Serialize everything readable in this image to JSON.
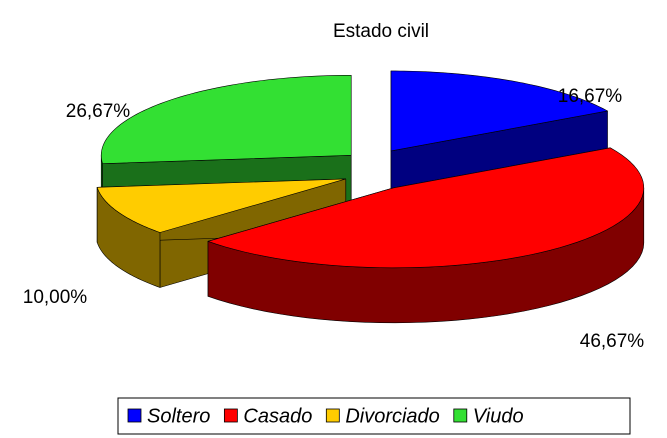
{
  "chart_data": {
    "type": "pie",
    "title": "Estado civil",
    "categories": [
      "Soltero",
      "Casado",
      "Divorciado",
      "Viudo"
    ],
    "values": [
      16.67,
      46.67,
      10.0,
      26.67
    ],
    "value_labels": [
      "16,67%",
      "46,67%",
      "10,00%",
      "26,67%"
    ],
    "colors": [
      "#0000ff",
      "#ff0000",
      "#ffcc00",
      "#33e033"
    ],
    "legend": "bottom"
  }
}
